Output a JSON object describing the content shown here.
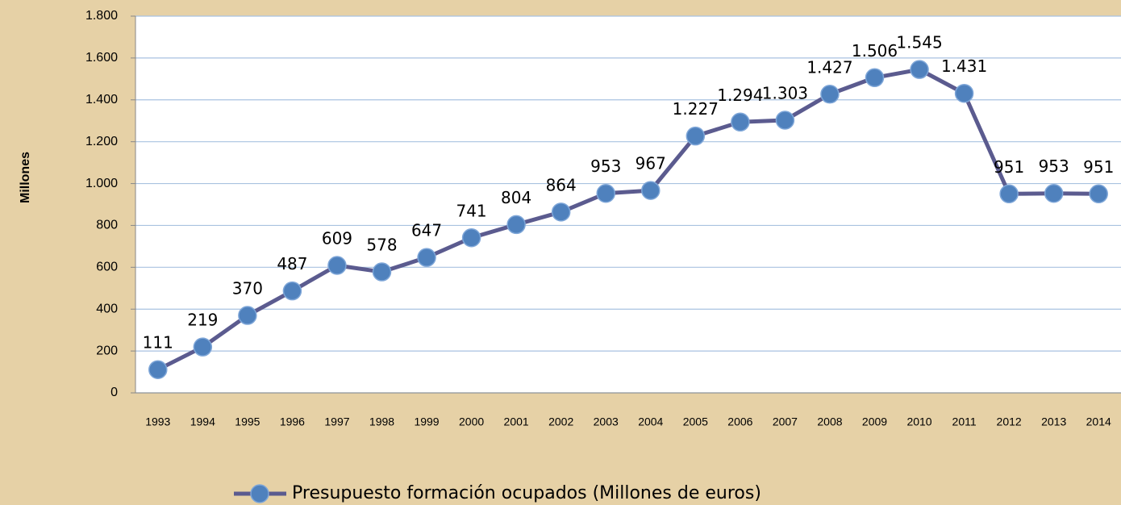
{
  "chart_data": {
    "type": "line",
    "y_label": "Millones",
    "categories": [
      "1993",
      "1994",
      "1995",
      "1996",
      "1997",
      "1998",
      "1999",
      "2000",
      "2001",
      "2002",
      "2003",
      "2004",
      "2005",
      "2006",
      "2007",
      "2008",
      "2009",
      "2010",
      "2011",
      "2012",
      "2013",
      "2014"
    ],
    "series": [
      {
        "name": "Presupuesto formación ocupados (Millones de euros)",
        "color": "#5b5b8f",
        "marker_color": "#4f81bd",
        "values": [
          111,
          219,
          370,
          487,
          609,
          578,
          647,
          741,
          804,
          864,
          953,
          967,
          1227,
          1294,
          1303,
          1427,
          1506,
          1545,
          1431,
          951,
          953,
          951
        ],
        "value_labels": [
          "111",
          "219",
          "370",
          "487",
          "609",
          "578",
          "647",
          "741",
          "804",
          "864",
          "953",
          "967",
          "1.227",
          "1.294",
          "1.303",
          "1.427",
          "1.506",
          "1.545",
          "1.431",
          "951",
          "953",
          "951"
        ]
      }
    ],
    "ylim": [
      0,
      1800
    ],
    "yticks": [
      0,
      200,
      400,
      600,
      800,
      {
        "value": 1000,
        "label": "1.000"
      },
      {
        "value": 1200,
        "label": "1.200"
      },
      {
        "value": 1400,
        "label": "1.400"
      },
      {
        "value": 1600,
        "label": "1.600"
      },
      {
        "value": 1800,
        "label": "1.800"
      }
    ],
    "grid": true,
    "legend": "bottom"
  }
}
